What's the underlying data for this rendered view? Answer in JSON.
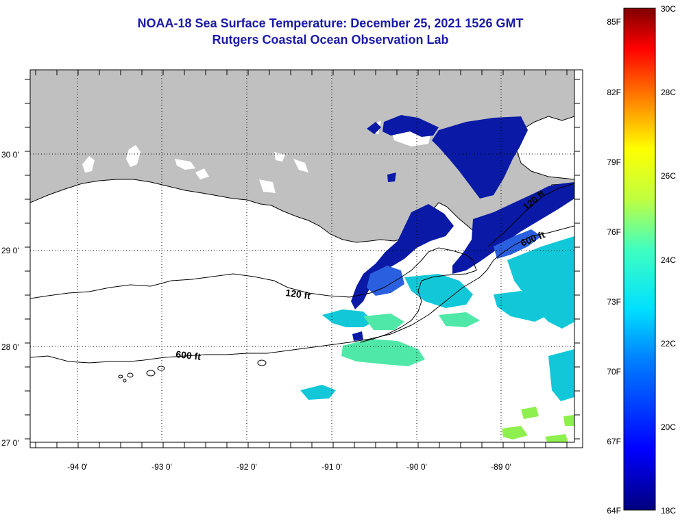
{
  "title": {
    "line1": "NOAA-18 Sea Surface Temperature:  December 25, 2021 1526 GMT",
    "line2": "Rutgers Coastal Ocean Observation Lab"
  },
  "map": {
    "lat_labels": [
      "30 0'",
      "29 0'",
      "28 0'",
      "27 0'"
    ],
    "lon_labels": [
      "-94 0'",
      "-93 0'",
      "-92 0'",
      "-91 0'",
      "-90 0'",
      "-89 0'"
    ],
    "contour_labels": [
      "120 ft",
      "600 ft",
      "600 ft",
      "120 ft"
    ],
    "colors": {
      "land": "#c0c0c0",
      "cold": "#0a1aa6",
      "warm": "#00d0e0",
      "green": "#70f070"
    }
  },
  "colorbar": {
    "f_labels": [
      "85F",
      "82F",
      "79F",
      "76F",
      "73F",
      "70F",
      "67F",
      "64F"
    ],
    "c_labels": [
      "30C",
      "28C",
      "26C",
      "24C",
      "22C",
      "20C",
      "18C"
    ]
  }
}
